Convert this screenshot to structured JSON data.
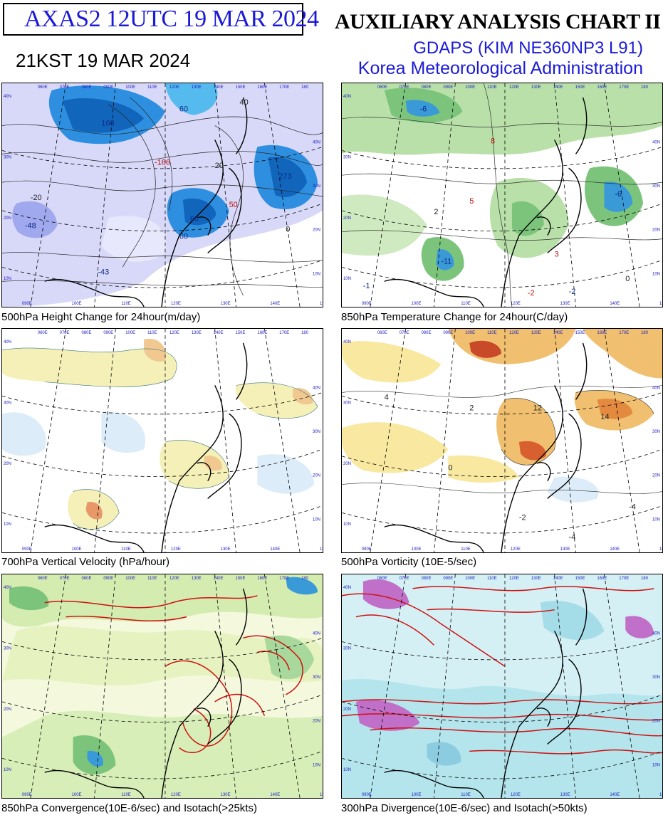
{
  "header": {
    "product_title": "AXAS2  12UTC 19 MAR 2024",
    "local_time": "21KST 19 MAR 2024",
    "chart_title": "AUXILIARY ANALYSIS CHART II",
    "model": "GDAPS (KIM NE360NP3 L91)",
    "agency": "Korea Meteorological Administration"
  },
  "colors": {
    "title_blue": "#1b1bd6",
    "grid_tick_blue": "#2020c0",
    "isotach_red": "#d01010"
  },
  "panels": [
    {
      "caption": "500hPa Height Change for 24hour(m/day)",
      "labels": [
        "160",
        "60",
        "60",
        "273",
        "60",
        "-166",
        "-48",
        "-43",
        "50",
        "40",
        "20",
        "0",
        "-20"
      ]
    },
    {
      "caption": "850hPa Temperature Change for 24hour(C/day)",
      "labels": [
        "5",
        "-6",
        "8",
        "-2",
        "3",
        "-11",
        "-6",
        "2",
        "-2",
        "-1",
        "0"
      ]
    },
    {
      "caption": "700hPa Vertical Velocity (hPa/hour)",
      "labels": []
    },
    {
      "caption": "500hPa Vorticity (10E-5/sec)",
      "labels": [
        "4",
        "2",
        "0",
        "-4",
        "-2",
        "12",
        "14",
        "-4"
      ]
    },
    {
      "caption": "850hPa Convergence(10E-6/sec) and Isotach(>25kts)",
      "labels": []
    },
    {
      "caption": "300hPa Divergence(10E-6/sec) and Isotach(>50kts)",
      "labels": []
    }
  ],
  "map_ticks": {
    "longitudes_top": [
      "060E",
      "070E",
      "080E",
      "090E",
      "100E",
      "110E",
      "120E",
      "130E",
      "140E",
      "150E",
      "160E",
      "170E",
      "180"
    ],
    "longitudes_bottom": [
      "090E",
      "100E",
      "110E",
      "120E",
      "130E",
      "140E",
      "150E"
    ],
    "latitudes_left": [
      "40N",
      "30N",
      "20N",
      "10N"
    ],
    "latitudes_right": [
      "40N",
      "30N",
      "20N",
      "10N"
    ]
  }
}
